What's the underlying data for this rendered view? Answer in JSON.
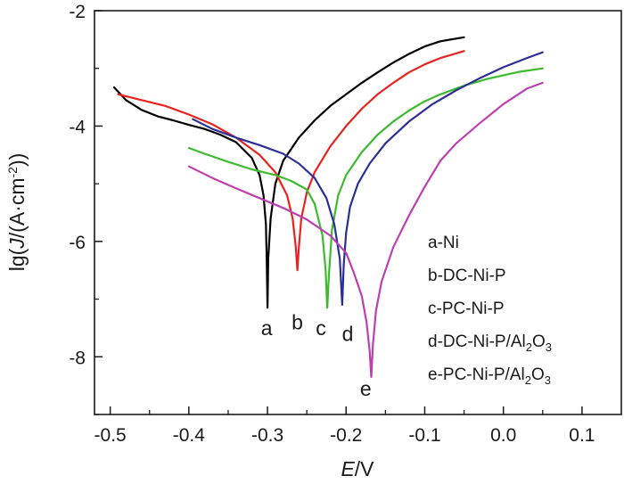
{
  "chart_data": {
    "type": "line",
    "title": "",
    "xlabel_var": "E",
    "xlabel_unit": "/V",
    "ylabel_prefix": "lg(",
    "ylabel_var": "J",
    "ylabel_mid": "/(A·cm",
    "ylabel_sup": "-2",
    "ylabel_suffix": "))",
    "xlim": [
      -0.52,
      0.15
    ],
    "ylim": [
      -9,
      -2
    ],
    "xticks": [
      -0.5,
      -0.4,
      -0.3,
      -0.2,
      -0.1,
      0.0,
      0.1
    ],
    "xtick_labels": [
      "-0.5",
      "-0.4",
      "-0.3",
      "-0.2",
      "-0.1",
      "0.0",
      "0.1"
    ],
    "yticks": [
      -8,
      -6,
      -4,
      -2
    ],
    "ytick_labels": [
      "-8",
      "-6",
      "-4",
      "-2"
    ],
    "legend": {
      "position": "lower-right",
      "entries": [
        {
          "prefix": "a-Ni",
          "sub": "",
          "suffix": ""
        },
        {
          "prefix": "b-DC-Ni-P",
          "sub": "",
          "suffix": ""
        },
        {
          "prefix": "c-PC-Ni-P",
          "sub": "",
          "suffix": ""
        },
        {
          "prefix": "d-DC-Ni-P/Al",
          "sub": "2",
          "suffix": "O"
        },
        {
          "prefix": "e-PC-Ni-P/Al",
          "sub": "2",
          "suffix": "O"
        }
      ],
      "entry_tail_sub": [
        "",
        "",
        "",
        "3",
        "3"
      ]
    },
    "series": [
      {
        "name": "a-Ni",
        "letter": "a",
        "color": "#000000",
        "label_at": [
          -0.301,
          -7.5
        ],
        "x": [
          -0.495,
          -0.48,
          -0.46,
          -0.44,
          -0.42,
          -0.4,
          -0.38,
          -0.36,
          -0.34,
          -0.32,
          -0.31,
          -0.305,
          -0.302,
          -0.301,
          -0.3,
          -0.299,
          -0.296,
          -0.29,
          -0.28,
          -0.26,
          -0.24,
          -0.22,
          -0.2,
          -0.18,
          -0.16,
          -0.14,
          -0.12,
          -0.1,
          -0.08,
          -0.05
        ],
        "y": [
          -3.33,
          -3.55,
          -3.72,
          -3.83,
          -3.9,
          -3.98,
          -4.05,
          -4.15,
          -4.28,
          -4.55,
          -4.85,
          -5.2,
          -5.7,
          -6.3,
          -7.15,
          -6.3,
          -5.6,
          -5.0,
          -4.6,
          -4.2,
          -3.9,
          -3.65,
          -3.45,
          -3.25,
          -3.07,
          -2.9,
          -2.75,
          -2.62,
          -2.53,
          -2.46
        ]
      },
      {
        "name": "b-DC-Ni-P",
        "letter": "b",
        "color": "#e8221e",
        "label_at": [
          -0.262,
          -7.4
        ],
        "x": [
          -0.49,
          -0.46,
          -0.43,
          -0.4,
          -0.37,
          -0.34,
          -0.31,
          -0.29,
          -0.275,
          -0.268,
          -0.264,
          -0.262,
          -0.26,
          -0.257,
          -0.25,
          -0.24,
          -0.22,
          -0.2,
          -0.18,
          -0.16,
          -0.14,
          -0.12,
          -0.1,
          -0.08,
          -0.05
        ],
        "y": [
          -3.45,
          -3.55,
          -3.65,
          -3.8,
          -3.97,
          -4.2,
          -4.5,
          -4.8,
          -5.2,
          -5.6,
          -6.1,
          -6.5,
          -6.1,
          -5.6,
          -5.15,
          -4.8,
          -4.35,
          -4.0,
          -3.7,
          -3.45,
          -3.25,
          -3.07,
          -2.93,
          -2.82,
          -2.7
        ]
      },
      {
        "name": "c-PC-Ni-P",
        "letter": "c",
        "color": "#3dba2e",
        "label_at": [
          -0.232,
          -7.5
        ],
        "x": [
          -0.4,
          -0.38,
          -0.35,
          -0.32,
          -0.29,
          -0.27,
          -0.25,
          -0.24,
          -0.23,
          -0.226,
          -0.224,
          -0.222,
          -0.218,
          -0.21,
          -0.2,
          -0.18,
          -0.16,
          -0.14,
          -0.12,
          -0.1,
          -0.08,
          -0.05,
          -0.02,
          0.02,
          0.05
        ],
        "y": [
          -4.38,
          -4.48,
          -4.62,
          -4.75,
          -4.85,
          -4.95,
          -5.1,
          -5.35,
          -5.9,
          -6.5,
          -7.15,
          -6.6,
          -5.8,
          -5.2,
          -4.85,
          -4.45,
          -4.15,
          -3.92,
          -3.73,
          -3.57,
          -3.45,
          -3.3,
          -3.18,
          -3.06,
          -3.0
        ]
      },
      {
        "name": "d-DC-Ni-P/Al2O3",
        "letter": "d",
        "color": "#2b2e96",
        "label_at": [
          -0.198,
          -7.6
        ],
        "x": [
          -0.395,
          -0.37,
          -0.34,
          -0.31,
          -0.28,
          -0.26,
          -0.24,
          -0.225,
          -0.215,
          -0.208,
          -0.205,
          -0.203,
          -0.2,
          -0.195,
          -0.185,
          -0.17,
          -0.15,
          -0.12,
          -0.09,
          -0.06,
          -0.03,
          0.0,
          0.03,
          0.05
        ],
        "y": [
          -3.88,
          -4.05,
          -4.2,
          -4.33,
          -4.48,
          -4.65,
          -4.9,
          -5.25,
          -5.7,
          -6.3,
          -7.1,
          -6.4,
          -5.85,
          -5.4,
          -5.0,
          -4.65,
          -4.3,
          -3.92,
          -3.62,
          -3.38,
          -3.17,
          -2.98,
          -2.82,
          -2.72
        ]
      },
      {
        "name": "e-PC-Ni-P/Al2O3",
        "letter": "e",
        "color": "#bd3fb0",
        "label_at": [
          -0.175,
          -8.55
        ],
        "x": [
          -0.4,
          -0.37,
          -0.34,
          -0.31,
          -0.28,
          -0.25,
          -0.22,
          -0.2,
          -0.19,
          -0.18,
          -0.174,
          -0.17,
          -0.168,
          -0.166,
          -0.162,
          -0.155,
          -0.14,
          -0.12,
          -0.1,
          -0.08,
          -0.06,
          -0.03,
          0.0,
          0.03,
          0.05
        ],
        "y": [
          -4.7,
          -4.9,
          -5.08,
          -5.25,
          -5.42,
          -5.62,
          -5.9,
          -6.2,
          -6.55,
          -6.95,
          -7.4,
          -7.9,
          -8.35,
          -7.8,
          -7.2,
          -6.7,
          -6.1,
          -5.55,
          -5.05,
          -4.6,
          -4.3,
          -3.95,
          -3.62,
          -3.35,
          -3.25
        ]
      }
    ]
  }
}
